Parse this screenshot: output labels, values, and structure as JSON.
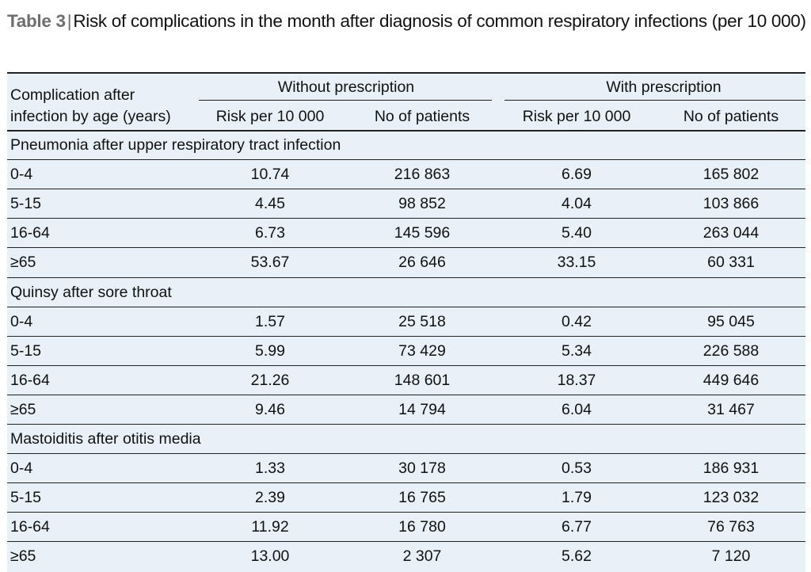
{
  "caption": {
    "label": "Table 3",
    "separator": "|",
    "text": "Risk of complications in the month after diagnosis of common respiratory infections (per 10 000)"
  },
  "header": {
    "row_header": "Complication after infection by age (years)",
    "row_header_line1": "Complication after",
    "row_header_line2": "infection by age (years)",
    "group_without": "Without prescription",
    "group_with": "With prescription",
    "col_risk": "Risk per 10 000",
    "col_patients": "No of patients"
  },
  "sections": [
    {
      "title": "Pneumonia after upper respiratory tract infection",
      "rows": [
        {
          "age": "0-4",
          "wo_risk": "10.74",
          "wo_n": "216 863",
          "w_risk": "6.69",
          "w_n": "165 802"
        },
        {
          "age": "5-15",
          "wo_risk": "4.45",
          "wo_n": "98 852",
          "w_risk": "4.04",
          "w_n": "103 866"
        },
        {
          "age": "16-64",
          "wo_risk": "6.73",
          "wo_n": "145 596",
          "w_risk": "5.40",
          "w_n": "263 044"
        },
        {
          "age": "≥65",
          "wo_risk": "53.67",
          "wo_n": "26 646",
          "w_risk": "33.15",
          "w_n": "60 331"
        }
      ]
    },
    {
      "title": "Quinsy after sore throat",
      "rows": [
        {
          "age": "0-4",
          "wo_risk": "1.57",
          "wo_n": "25 518",
          "w_risk": "0.42",
          "w_n": "95 045"
        },
        {
          "age": "5-15",
          "wo_risk": "5.99",
          "wo_n": "73 429",
          "w_risk": "5.34",
          "w_n": "226 588"
        },
        {
          "age": "16-64",
          "wo_risk": "21.26",
          "wo_n": "148 601",
          "w_risk": "18.37",
          "w_n": "449 646"
        },
        {
          "age": "≥65",
          "wo_risk": "9.46",
          "wo_n": "14 794",
          "w_risk": "6.04",
          "w_n": "31 467"
        }
      ]
    },
    {
      "title": "Mastoiditis after otitis media",
      "rows": [
        {
          "age": "0-4",
          "wo_risk": "1.33",
          "wo_n": "30 178",
          "w_risk": "0.53",
          "w_n": "186 931"
        },
        {
          "age": "5-15",
          "wo_risk": "2.39",
          "wo_n": "16 765",
          "w_risk": "1.79",
          "w_n": "123 032"
        },
        {
          "age": "16-64",
          "wo_risk": "11.92",
          "wo_n": "16 780",
          "w_risk": "6.77",
          "w_n": "76 763"
        },
        {
          "age": "≥65",
          "wo_risk": "13.00",
          "wo_n": "2 307",
          "w_risk": "5.62",
          "w_n": "7 120"
        }
      ]
    }
  ]
}
